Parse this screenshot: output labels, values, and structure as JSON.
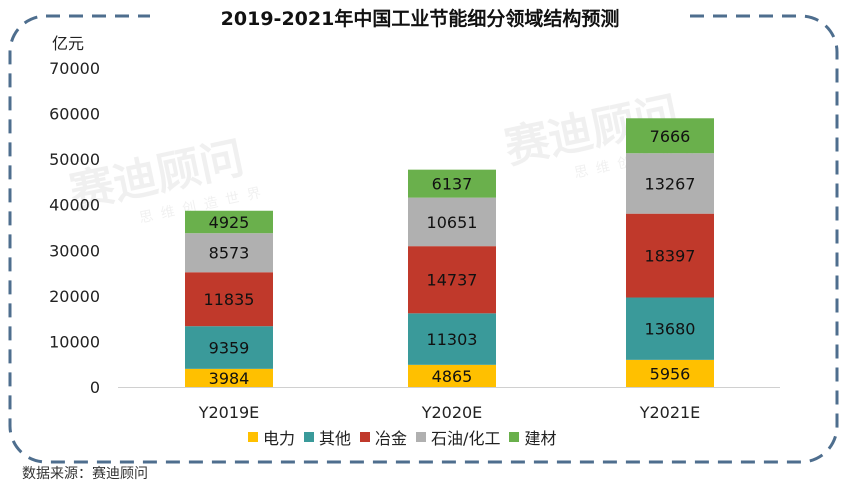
{
  "title": "2019-2021年中国工业节能细分领域结构预测",
  "unit_label": "亿元",
  "source": "数据来源：赛迪顾问",
  "watermark": "赛迪顾问 思维创造世界",
  "chart_data": {
    "type": "bar",
    "stacked": true,
    "categories": [
      "Y2019E",
      "Y2020E",
      "Y2021E"
    ],
    "series": [
      {
        "name": "电力",
        "color": "#FFC000",
        "values": [
          3984,
          4865,
          5956
        ]
      },
      {
        "name": "其他",
        "color": "#3A9A9A",
        "values": [
          9359,
          11303,
          13680
        ]
      },
      {
        "name": "冶金",
        "color": "#C0392B",
        "values": [
          11835,
          14737,
          18397
        ]
      },
      {
        "name": "石油/化工",
        "color": "#B0B0B0",
        "values": [
          8573,
          10651,
          13267
        ]
      },
      {
        "name": "建材",
        "color": "#6AB04C",
        "values": [
          4925,
          6137,
          7666
        ]
      }
    ],
    "ylabel": "亿元",
    "ylim": [
      0,
      70000
    ],
    "yticks": [
      0,
      10000,
      20000,
      30000,
      40000,
      50000,
      60000,
      70000
    ],
    "grid": false,
    "legend_position": "bottom"
  }
}
